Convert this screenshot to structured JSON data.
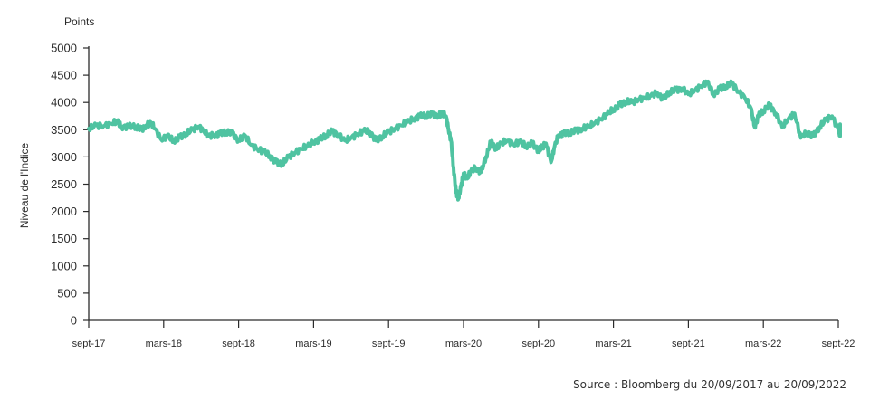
{
  "chart_data": {
    "type": "line",
    "y_unit_label": "Points",
    "ylabel": "Niveau de l'Indice",
    "xlabel": "",
    "ylim": [
      0,
      5000
    ],
    "y_ticks": [
      "0",
      "500",
      "1000",
      "1500",
      "2000",
      "2500",
      "3000",
      "3500",
      "4000",
      "4500",
      "5000"
    ],
    "x_ticks": [
      "sept-17",
      "mars-18",
      "sept-18",
      "mars-19",
      "sept-19",
      "mars-20",
      "sept-20",
      "mars-21",
      "sept-21",
      "mars-22",
      "sept-22"
    ],
    "x_range_months": [
      0,
      60
    ],
    "grid": false,
    "legend": "none",
    "series": [
      {
        "color": "#4fc3a1",
        "points": [
          [
            0,
            3520
          ],
          [
            0.6,
            3580
          ],
          [
            1.2,
            3570
          ],
          [
            1.8,
            3610
          ],
          [
            2.3,
            3660
          ],
          [
            2.6,
            3550
          ],
          [
            3.2,
            3560
          ],
          [
            3.8,
            3560
          ],
          [
            4.2,
            3500
          ],
          [
            4.6,
            3580
          ],
          [
            5.0,
            3620
          ],
          [
            5.3,
            3520
          ],
          [
            5.8,
            3320
          ],
          [
            6.3,
            3380
          ],
          [
            6.8,
            3300
          ],
          [
            7.3,
            3360
          ],
          [
            7.8,
            3430
          ],
          [
            8.3,
            3500
          ],
          [
            8.8,
            3560
          ],
          [
            9.2,
            3480
          ],
          [
            9.6,
            3380
          ],
          [
            10.0,
            3400
          ],
          [
            10.5,
            3420
          ],
          [
            11.0,
            3460
          ],
          [
            11.5,
            3430
          ],
          [
            12.0,
            3300
          ],
          [
            12.5,
            3400
          ],
          [
            13.0,
            3220
          ],
          [
            13.5,
            3150
          ],
          [
            14.0,
            3100
          ],
          [
            14.5,
            3020
          ],
          [
            15.0,
            2900
          ],
          [
            15.5,
            2880
          ],
          [
            16.0,
            3000
          ],
          [
            16.5,
            3080
          ],
          [
            17.0,
            3150
          ],
          [
            17.5,
            3200
          ],
          [
            18.0,
            3280
          ],
          [
            18.5,
            3320
          ],
          [
            19.0,
            3400
          ],
          [
            19.5,
            3470
          ],
          [
            20.0,
            3400
          ],
          [
            20.5,
            3300
          ],
          [
            21.0,
            3350
          ],
          [
            21.5,
            3420
          ],
          [
            22.0,
            3480
          ],
          [
            22.5,
            3460
          ],
          [
            23.0,
            3300
          ],
          [
            23.5,
            3380
          ],
          [
            24.0,
            3460
          ],
          [
            24.5,
            3520
          ],
          [
            25.0,
            3580
          ],
          [
            25.5,
            3640
          ],
          [
            26.0,
            3700
          ],
          [
            26.5,
            3750
          ],
          [
            27.0,
            3760
          ],
          [
            27.5,
            3780
          ],
          [
            28.0,
            3760
          ],
          [
            28.3,
            3800
          ],
          [
            28.6,
            3750
          ],
          [
            28.8,
            3500
          ],
          [
            29.0,
            3300
          ],
          [
            29.2,
            2800
          ],
          [
            29.4,
            2350
          ],
          [
            29.6,
            2250
          ],
          [
            29.8,
            2450
          ],
          [
            30.0,
            2700
          ],
          [
            30.3,
            2600
          ],
          [
            30.6,
            2750
          ],
          [
            31.0,
            2800
          ],
          [
            31.4,
            2720
          ],
          [
            31.8,
            3000
          ],
          [
            32.2,
            3280
          ],
          [
            32.6,
            3150
          ],
          [
            33.0,
            3250
          ],
          [
            33.5,
            3300
          ],
          [
            34.0,
            3230
          ],
          [
            34.5,
            3280
          ],
          [
            35.0,
            3200
          ],
          [
            35.5,
            3250
          ],
          [
            36.0,
            3120
          ],
          [
            36.3,
            3180
          ],
          [
            36.6,
            3250
          ],
          [
            37.0,
            2900
          ],
          [
            37.3,
            3200
          ],
          [
            37.6,
            3400
          ],
          [
            38.0,
            3420
          ],
          [
            38.5,
            3450
          ],
          [
            39.0,
            3480
          ],
          [
            39.5,
            3520
          ],
          [
            40.0,
            3560
          ],
          [
            40.5,
            3620
          ],
          [
            41.0,
            3700
          ],
          [
            41.5,
            3780
          ],
          [
            42.0,
            3880
          ],
          [
            42.5,
            3950
          ],
          [
            43.0,
            4020
          ],
          [
            43.5,
            4000
          ],
          [
            44.0,
            4060
          ],
          [
            44.5,
            4080
          ],
          [
            45.0,
            4120
          ],
          [
            45.5,
            4180
          ],
          [
            46.0,
            4060
          ],
          [
            46.5,
            4200
          ],
          [
            47.0,
            4230
          ],
          [
            47.5,
            4260
          ],
          [
            48.0,
            4150
          ],
          [
            48.5,
            4220
          ],
          [
            49.0,
            4300
          ],
          [
            49.5,
            4380
          ],
          [
            50.0,
            4150
          ],
          [
            50.5,
            4250
          ],
          [
            51.0,
            4300
          ],
          [
            51.5,
            4350
          ],
          [
            52.0,
            4200
          ],
          [
            52.5,
            4100
          ],
          [
            53.0,
            3900
          ],
          [
            53.3,
            3550
          ],
          [
            53.6,
            3750
          ],
          [
            54.0,
            3850
          ],
          [
            54.5,
            3950
          ],
          [
            55.0,
            3800
          ],
          [
            55.5,
            3550
          ],
          [
            56.0,
            3700
          ],
          [
            56.5,
            3800
          ],
          [
            57.0,
            3350
          ],
          [
            57.5,
            3450
          ],
          [
            58.0,
            3380
          ],
          [
            58.5,
            3550
          ],
          [
            59.0,
            3680
          ],
          [
            59.5,
            3750
          ],
          [
            60.0,
            3500
          ],
          [
            60.3,
            3400
          ],
          [
            60.6,
            3600
          ],
          [
            60.9,
            3480
          ],
          [
            61.2,
            3420
          ]
        ]
      }
    ],
    "source_note": "Source : Bloomberg du 20/09/2017 au 20/09/2022"
  }
}
